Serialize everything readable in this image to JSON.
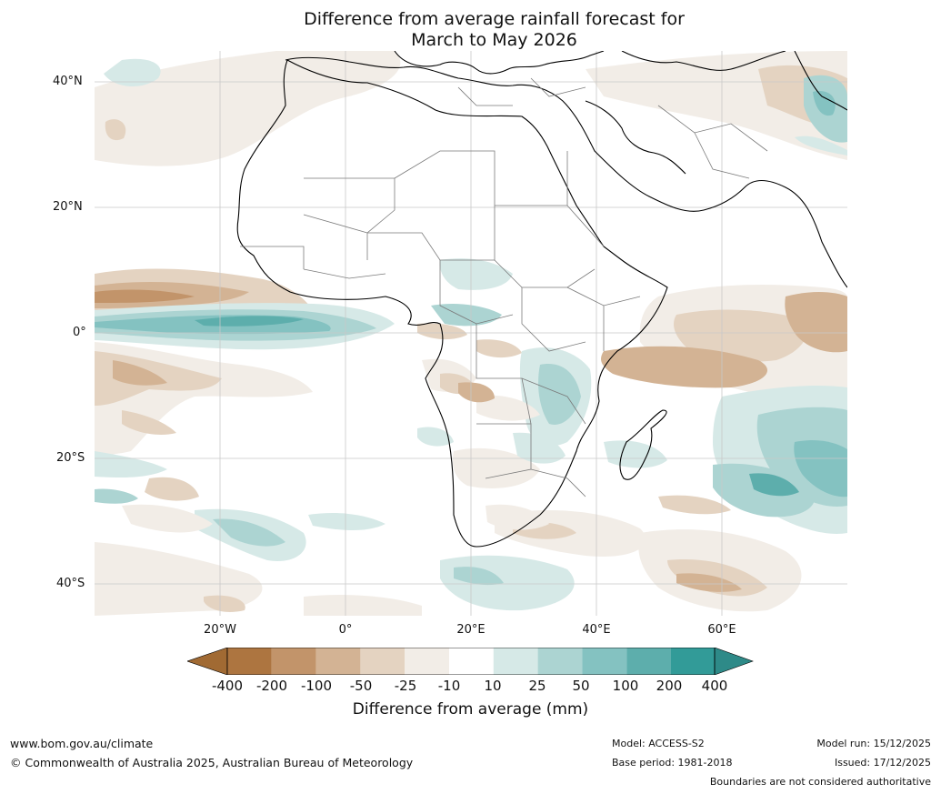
{
  "title": {
    "line1": "Difference from average rainfall forecast for",
    "line2": "March to May 2026"
  },
  "map": {
    "lat_labels": [
      "40°N",
      "20°N",
      "0°",
      "20°S",
      "40°S"
    ],
    "lon_labels": [
      "20°W",
      "0°",
      "20°E",
      "40°E",
      "60°E"
    ]
  },
  "legend": {
    "title": "Difference from average (mm)",
    "ticks": [
      "-400",
      "-200",
      "-100",
      "-50",
      "-25",
      "-10",
      "10",
      "25",
      "50",
      "100",
      "200",
      "400"
    ],
    "colors": [
      "#a16a33",
      "#ad7540",
      "#c2946a",
      "#d3b394",
      "#e4d3c1",
      "#f2ede7",
      "#ffffff",
      "#d6e9e7",
      "#acd4d2",
      "#84c2c1",
      "#5daeac",
      "#329b98",
      "#2e8a88"
    ]
  },
  "footer": {
    "website": "www.bom.gov.au/climate",
    "copyright": "© Commonwealth of Australia 2025, Australian Bureau of Meteorology",
    "model": "Model: ACCESS-S2",
    "base_period": "Base period: 1981-2018",
    "model_run": "Model run: 15/12/2025",
    "issued": "Issued: 17/12/2025",
    "disclaimer": "Boundaries are not considered authoritative"
  }
}
